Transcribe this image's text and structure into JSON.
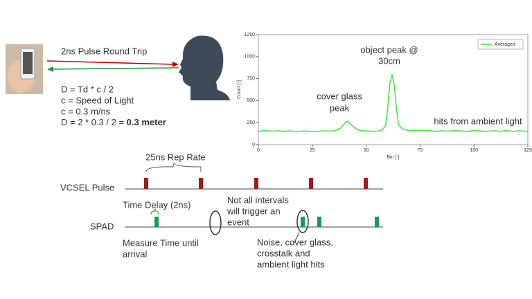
{
  "diagram": {
    "pulse_label": "2ns Pulse Round Trip",
    "equations": [
      "D = Td * c / 2",
      "c = Speed of Light",
      "c = 0.3 m/ns",
      "D = 2 * 0.3 / 2 = "
    ],
    "result": "0.3 meter",
    "rep_rate": "25ns Rep Rate",
    "vcsel_label": "VCSEL Pulse",
    "delay_label": "Time Delay (2ns)",
    "spad_label": "SPAD",
    "not_all": [
      "Not all intervals",
      "will trigger an",
      "event"
    ],
    "measure": [
      "Measure Time until",
      "arrival"
    ],
    "noise": [
      "Noise, cover glass,",
      "crosstalk and",
      "ambient light hits"
    ]
  },
  "chart_data": {
    "type": "line",
    "xlabel": "Bin [-]",
    "ylabel": "Count [-]",
    "x": [
      0,
      3,
      6,
      9,
      12,
      15,
      18,
      21,
      24,
      27,
      30,
      33,
      36,
      38,
      40,
      41,
      42,
      44,
      46,
      48,
      51,
      54,
      57,
      59,
      60,
      61,
      62,
      63,
      64,
      65,
      67,
      70,
      73,
      76,
      79,
      82,
      85,
      88,
      91,
      94,
      97,
      100,
      103,
      106,
      109,
      112,
      115,
      118,
      121,
      124,
      125
    ],
    "series": [
      {
        "name": "Averaged",
        "color": "#33ee33",
        "values": [
          150,
          160,
          152,
          158,
          150,
          156,
          148,
          155,
          152,
          150,
          157,
          153,
          160,
          185,
          240,
          265,
          255,
          205,
          170,
          158,
          154,
          150,
          160,
          210,
          420,
          700,
          790,
          690,
          420,
          230,
          175,
          160,
          165,
          158,
          160,
          150,
          158,
          152,
          160,
          155,
          150,
          162,
          155,
          150,
          158,
          152,
          160,
          150,
          158,
          152,
          155
        ]
      }
    ],
    "xlim": [
      0,
      125
    ],
    "xticks": [
      0,
      25,
      50,
      75,
      100,
      125
    ],
    "ylim": [
      0,
      1250
    ],
    "yticks": [
      0,
      250,
      500,
      750,
      1000,
      1250
    ],
    "grid": false,
    "legend": "upper right",
    "annotations": [
      "object peak @",
      "30cm",
      "cover glass",
      "peak",
      "hits from ambient light"
    ]
  }
}
